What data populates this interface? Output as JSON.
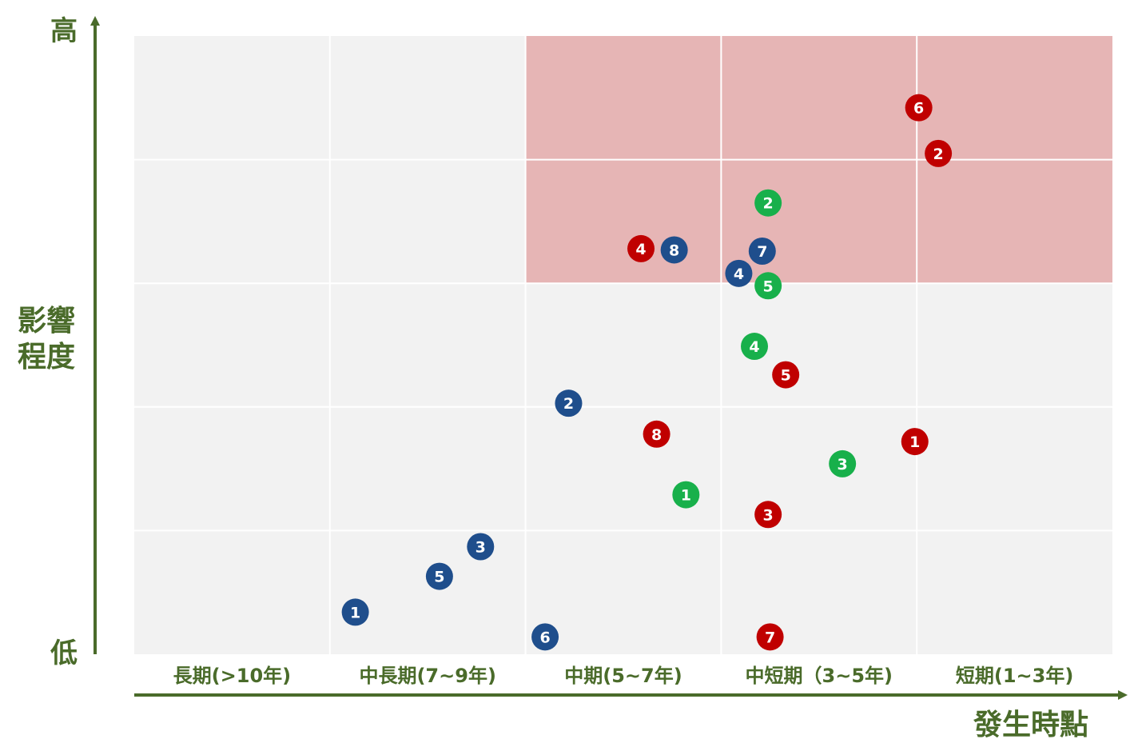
{
  "chart_data": {
    "type": "scatter",
    "title": "",
    "xlabel": "發生時點",
    "ylabel": "影響程度",
    "y_high_label": "高",
    "y_low_label": "低",
    "categories": [
      "長期(>10年)",
      "中長期(7~9年)",
      "中期(5~7年)",
      "中短期（3~5年)",
      "短期(1~3年)"
    ],
    "xlim": [
      0,
      5
    ],
    "ylim": [
      0,
      5
    ],
    "grid": true,
    "legend": "none",
    "highlight_region": {
      "x": [
        2,
        5
      ],
      "y": [
        3,
        5
      ],
      "color": "#e6b5b5"
    },
    "series": [
      {
        "color": "#1f4e8c",
        "points": [
          {
            "label": "1",
            "x": 1.13,
            "y": 0.34
          },
          {
            "label": "2",
            "x": 2.22,
            "y": 2.03
          },
          {
            "label": "3",
            "x": 1.77,
            "y": 0.87
          },
          {
            "label": "4",
            "x": 3.09,
            "y": 3.08
          },
          {
            "label": "5",
            "x": 1.56,
            "y": 0.63
          },
          {
            "label": "6",
            "x": 2.1,
            "y": 0.14
          },
          {
            "label": "7",
            "x": 3.21,
            "y": 3.26
          },
          {
            "label": "8",
            "x": 2.76,
            "y": 3.27
          }
        ]
      },
      {
        "color": "#c00000",
        "points": [
          {
            "label": "1",
            "x": 3.99,
            "y": 1.72
          },
          {
            "label": "2",
            "x": 4.11,
            "y": 4.05
          },
          {
            "label": "3",
            "x": 3.24,
            "y": 1.13
          },
          {
            "label": "4",
            "x": 2.59,
            "y": 3.28
          },
          {
            "label": "5",
            "x": 3.33,
            "y": 2.26
          },
          {
            "label": "6",
            "x": 4.01,
            "y": 4.42
          },
          {
            "label": "7",
            "x": 3.25,
            "y": 0.14
          },
          {
            "label": "8",
            "x": 2.67,
            "y": 1.78
          }
        ]
      },
      {
        "color": "#18b04b",
        "points": [
          {
            "label": "1",
            "x": 2.82,
            "y": 1.29
          },
          {
            "label": "2",
            "x": 3.24,
            "y": 3.65
          },
          {
            "label": "3",
            "x": 3.62,
            "y": 1.54
          },
          {
            "label": "4",
            "x": 3.17,
            "y": 2.49
          },
          {
            "label": "5",
            "x": 3.24,
            "y": 2.98
          }
        ]
      }
    ]
  }
}
